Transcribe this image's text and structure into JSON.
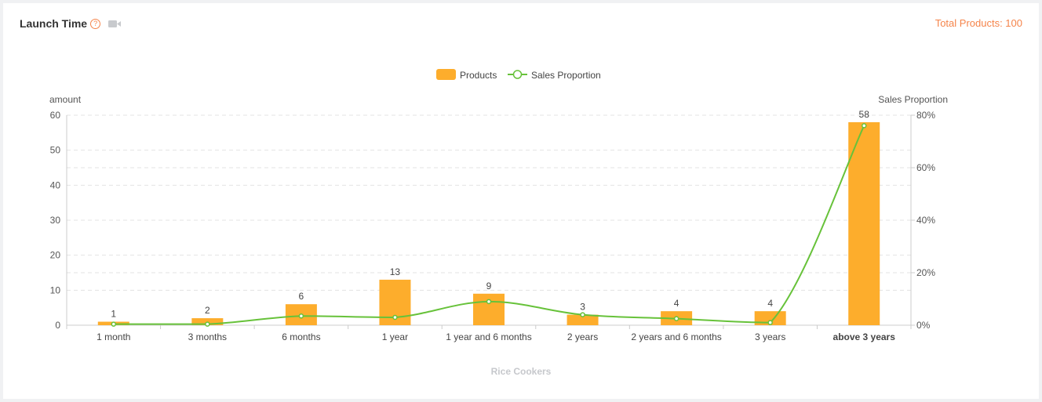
{
  "header": {
    "title": "Launch Time",
    "help_glyph": "?",
    "help_icon": "question-circle-icon",
    "video_icon": "video-camera-icon",
    "total_label": "Total Products: 100"
  },
  "chart_data": {
    "type": "bar",
    "categories": [
      "1 month",
      "3 months",
      "6 months",
      "1 year",
      "1 year and 6 months",
      "2 years",
      "2 years and 6 months",
      "3 years",
      "above 3 years"
    ],
    "series": [
      {
        "name": "Products",
        "type": "bar",
        "axis": "left",
        "color": "#fdad2c",
        "values": [
          1,
          2,
          6,
          13,
          9,
          3,
          4,
          4,
          58
        ]
      },
      {
        "name": "Sales Proportion",
        "type": "line",
        "axis": "right",
        "color": "#67c23a",
        "values": [
          0.4,
          0.4,
          3.5,
          3.0,
          9.0,
          4.0,
          2.5,
          1.0,
          76.0
        ]
      }
    ],
    "y_left": {
      "label": "amount",
      "min": 0,
      "max": 60,
      "ticks": [
        "0",
        "10",
        "20",
        "30",
        "40",
        "50",
        "60"
      ]
    },
    "y_right": {
      "label": "Sales Proportion",
      "min": 0,
      "max": 80,
      "unit": "%",
      "ticks": [
        "0%",
        "20%",
        "40%",
        "60%",
        "80%"
      ]
    },
    "xlabel": "Rice Cookers",
    "legend": {
      "placement": "top-center",
      "items": [
        "Products",
        "Sales Proportion"
      ]
    },
    "grid": true
  }
}
